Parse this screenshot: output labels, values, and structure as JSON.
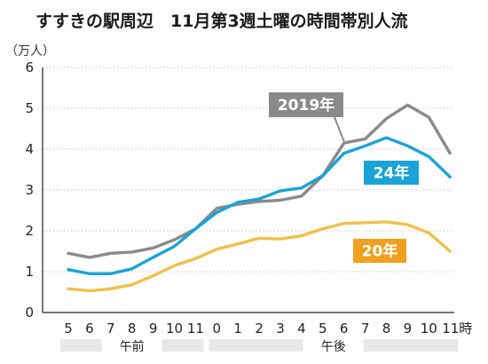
{
  "chart_data": {
    "type": "line",
    "title": "すすきの駅周辺　11月第3週土曜の時間帯別人流",
    "ylabel": "（万人）",
    "ylim": [
      0,
      6
    ],
    "yticks": [
      0,
      1,
      2,
      3,
      4,
      5,
      6
    ],
    "categories": [
      "5",
      "6",
      "7",
      "8",
      "9",
      "10",
      "11",
      "0",
      "1",
      "2",
      "3",
      "4",
      "5",
      "6",
      "7",
      "8",
      "9",
      "10",
      "11"
    ],
    "x_unit": "時",
    "periods": [
      {
        "label": "午前",
        "from": 0,
        "to": 6
      },
      {
        "label": "午後",
        "from": 7,
        "to": 18
      }
    ],
    "grid": true,
    "series": [
      {
        "name": "2019年",
        "color": "#8a8a8a",
        "values": [
          1.45,
          1.35,
          1.45,
          1.48,
          1.58,
          1.78,
          2.05,
          2.55,
          2.65,
          2.72,
          2.75,
          2.85,
          3.35,
          4.15,
          4.25,
          4.75,
          5.08,
          4.78,
          3.9
        ]
      },
      {
        "name": "24年",
        "color": "#1aa3d9",
        "values": [
          1.05,
          0.95,
          0.95,
          1.07,
          1.35,
          1.62,
          2.05,
          2.45,
          2.7,
          2.78,
          2.98,
          3.05,
          3.35,
          3.9,
          4.08,
          4.28,
          4.08,
          3.82,
          3.32
        ]
      },
      {
        "name": "20年",
        "color": "#f0c04a",
        "values": [
          0.58,
          0.53,
          0.58,
          0.68,
          0.9,
          1.15,
          1.32,
          1.55,
          1.68,
          1.82,
          1.8,
          1.88,
          2.05,
          2.18,
          2.2,
          2.22,
          2.15,
          1.95,
          1.5
        ]
      }
    ],
    "labels": [
      {
        "series": 0,
        "text": "2019年",
        "bg": "#8a8a8a"
      },
      {
        "series": 1,
        "text": "24年",
        "bg": "#1aa3d9"
      },
      {
        "series": 2,
        "text": "20年",
        "bg": "#f0a020"
      }
    ]
  }
}
